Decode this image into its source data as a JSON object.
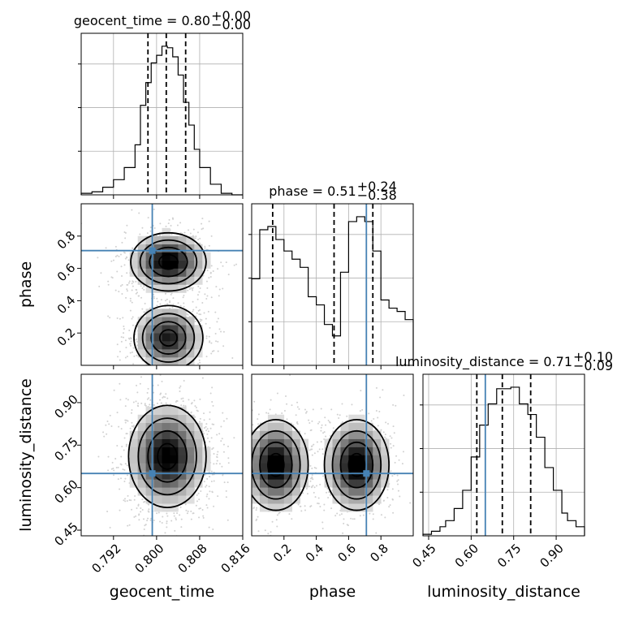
{
  "chart_data": {
    "type": "corner",
    "parameters": [
      {
        "name": "geocent_time",
        "title": "geocent_time = 0.80",
        "title_sup": "+0.00",
        "title_sub": "−0.00",
        "range": [
          0.786,
          0.816
        ],
        "ticks": [
          0.792,
          0.8,
          0.808,
          0.816
        ],
        "tick_labels": [
          "0.792",
          "0.800",
          "0.808",
          "0.816"
        ],
        "quantiles": [
          0.7984,
          0.8018,
          0.8054
        ],
        "truth": 0.7992,
        "hist_bins": [
          0.786,
          0.788,
          0.79,
          0.792,
          0.794,
          0.796,
          0.797,
          0.798,
          0.799,
          0.8,
          0.801,
          0.802,
          0.803,
          0.804,
          0.805,
          0.806,
          0.807,
          0.808,
          0.81,
          0.812,
          0.814,
          0.816
        ],
        "hist_values": [
          0.01,
          0.02,
          0.05,
          0.1,
          0.18,
          0.33,
          0.59,
          0.74,
          0.87,
          0.92,
          0.98,
          0.97,
          0.91,
          0.79,
          0.61,
          0.46,
          0.3,
          0.18,
          0.07,
          0.01,
          0.0
        ]
      },
      {
        "name": "phase",
        "title": "phase = 0.51",
        "title_sup": "+0.24",
        "title_sub": "−0.38",
        "range": [
          0.0,
          1.0
        ],
        "ticks": [
          0.2,
          0.4,
          0.6,
          0.8
        ],
        "tick_labels": [
          "0.2",
          "0.4",
          "0.6",
          "0.8"
        ],
        "quantiles": [
          0.13,
          0.51,
          0.75
        ],
        "truth": 0.71,
        "hist_bins": [
          0.0,
          0.05,
          0.1,
          0.15,
          0.2,
          0.25,
          0.3,
          0.35,
          0.4,
          0.45,
          0.5,
          0.55,
          0.6,
          0.65,
          0.7,
          0.75,
          0.8,
          0.85,
          0.9,
          0.95,
          1.0
        ],
        "hist_values": [
          0.53,
          0.83,
          0.85,
          0.77,
          0.7,
          0.65,
          0.6,
          0.42,
          0.37,
          0.25,
          0.18,
          0.57,
          0.88,
          0.91,
          0.88,
          0.7,
          0.4,
          0.35,
          0.33,
          0.28,
          0.12
        ]
      },
      {
        "name": "luminosity_distance",
        "title": "luminosity_distance = 0.71",
        "title_sup": "+0.10",
        "title_sub": "−0.09",
        "range": [
          0.43,
          1.0
        ],
        "ticks": [
          0.45,
          0.6,
          0.75,
          0.9
        ],
        "tick_labels": [
          "0.45",
          "0.60",
          "0.75",
          "0.90"
        ],
        "quantiles": [
          0.62,
          0.71,
          0.81
        ],
        "truth": 0.65,
        "hist_bins": [
          0.43,
          0.46,
          0.49,
          0.51,
          0.54,
          0.57,
          0.6,
          0.63,
          0.66,
          0.69,
          0.72,
          0.74,
          0.77,
          0.8,
          0.83,
          0.86,
          0.89,
          0.92,
          0.94,
          0.97,
          1.0
        ],
        "hist_values": [
          0.01,
          0.03,
          0.06,
          0.1,
          0.18,
          0.3,
          0.52,
          0.73,
          0.87,
          0.97,
          0.97,
          0.98,
          0.87,
          0.8,
          0.65,
          0.45,
          0.3,
          0.15,
          0.1,
          0.06,
          0.0
        ]
      }
    ],
    "pairs": [
      {
        "x": "geocent_time",
        "y": "phase",
        "modes": [
          {
            "x": 0.8022,
            "y": 0.64,
            "sx": 0.0035,
            "sy": 0.09,
            "w": 1.0
          },
          {
            "x": 0.8022,
            "y": 0.17,
            "sx": 0.0032,
            "sy": 0.1,
            "w": 0.85
          }
        ]
      },
      {
        "x": "geocent_time",
        "y": "luminosity_distance",
        "modes": [
          {
            "x": 0.802,
            "y": 0.71,
            "sx": 0.0036,
            "sy": 0.09,
            "w": 1.0
          }
        ]
      },
      {
        "x": "phase",
        "y": "luminosity_distance",
        "modes": [
          {
            "x": 0.15,
            "y": 0.68,
            "sx": 0.1,
            "sy": 0.08,
            "w": 1.0
          },
          {
            "x": 0.65,
            "y": 0.68,
            "sx": 0.1,
            "sy": 0.08,
            "w": 1.0
          }
        ]
      }
    ],
    "truth_color": "#4682b4",
    "hist_color": "#000000",
    "grid": true
  }
}
